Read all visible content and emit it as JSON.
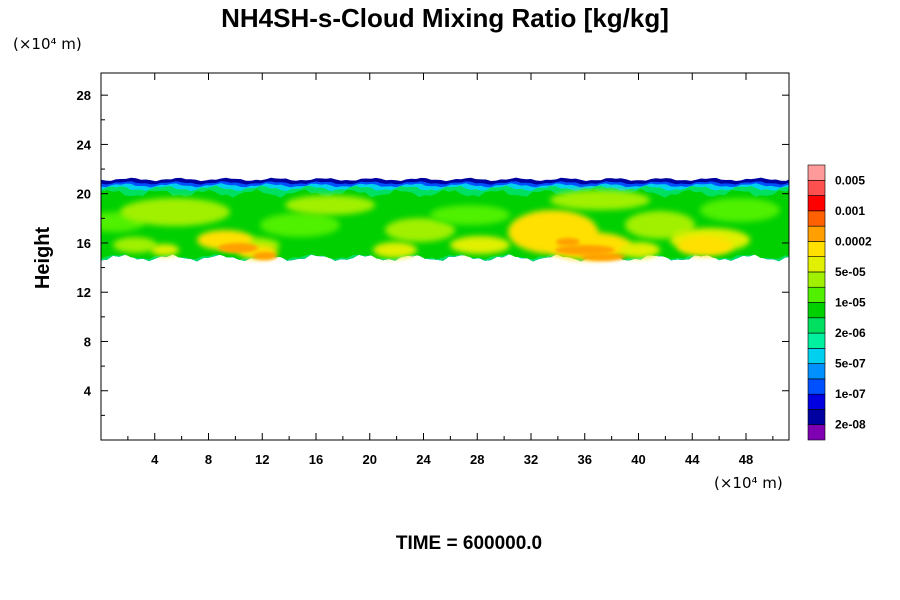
{
  "chart_data": {
    "type": "heatmap",
    "title": "NH4SH-s-Cloud Mixing Ratio [kg/kg]",
    "ylabel": "Height",
    "x_unit_label": "(×10⁴ m)",
    "y_unit_label": "(×10⁴ m)",
    "footer": "TIME = 600000.0",
    "xlim": [
      0,
      51.2
    ],
    "ylim": [
      0,
      29.8
    ],
    "x_ticks": [
      {
        "value": 4,
        "label": "4"
      },
      {
        "value": 8,
        "label": "8"
      },
      {
        "value": 12,
        "label": "12"
      },
      {
        "value": 16,
        "label": "16"
      },
      {
        "value": 20,
        "label": "20"
      },
      {
        "value": 24,
        "label": "24"
      },
      {
        "value": 28,
        "label": "28"
      },
      {
        "value": 32,
        "label": "32"
      },
      {
        "value": 36,
        "label": "36"
      },
      {
        "value": 40,
        "label": "40"
      },
      {
        "value": 44,
        "label": "44"
      },
      {
        "value": 48,
        "label": "48"
      }
    ],
    "y_ticks": [
      {
        "value": 4,
        "label": "4"
      },
      {
        "value": 8,
        "label": "8"
      },
      {
        "value": 12,
        "label": "12"
      },
      {
        "value": 16,
        "label": "16"
      },
      {
        "value": 20,
        "label": "20"
      },
      {
        "value": 24,
        "label": "24"
      },
      {
        "value": 28,
        "label": "28"
      }
    ],
    "cloud_layer": {
      "bottom": 14.8,
      "top": 21.0
    },
    "colorbar": {
      "colors": [
        "#7f00b2",
        "#0000a0",
        "#0000e0",
        "#0050ff",
        "#0090ff",
        "#00d0f0",
        "#00f0a0",
        "#00e060",
        "#00d000",
        "#50f000",
        "#a0f000",
        "#e0f000",
        "#ffe000",
        "#ffa000",
        "#ff6000",
        "#ff0000",
        "#ff5050",
        "#ff9a9a"
      ],
      "labels": [
        {
          "label": "2e-08",
          "boundary": 1
        },
        {
          "label": "1e-07",
          "boundary": 3
        },
        {
          "label": "5e-07",
          "boundary": 5
        },
        {
          "label": "2e-06",
          "boundary": 7
        },
        {
          "label": "1e-05",
          "boundary": 9
        },
        {
          "label": "5e-05",
          "boundary": 11
        },
        {
          "label": "0.0002",
          "boundary": 13
        },
        {
          "label": "0.001",
          "boundary": 15
        },
        {
          "label": "0.005",
          "boundary": 17
        }
      ]
    }
  }
}
